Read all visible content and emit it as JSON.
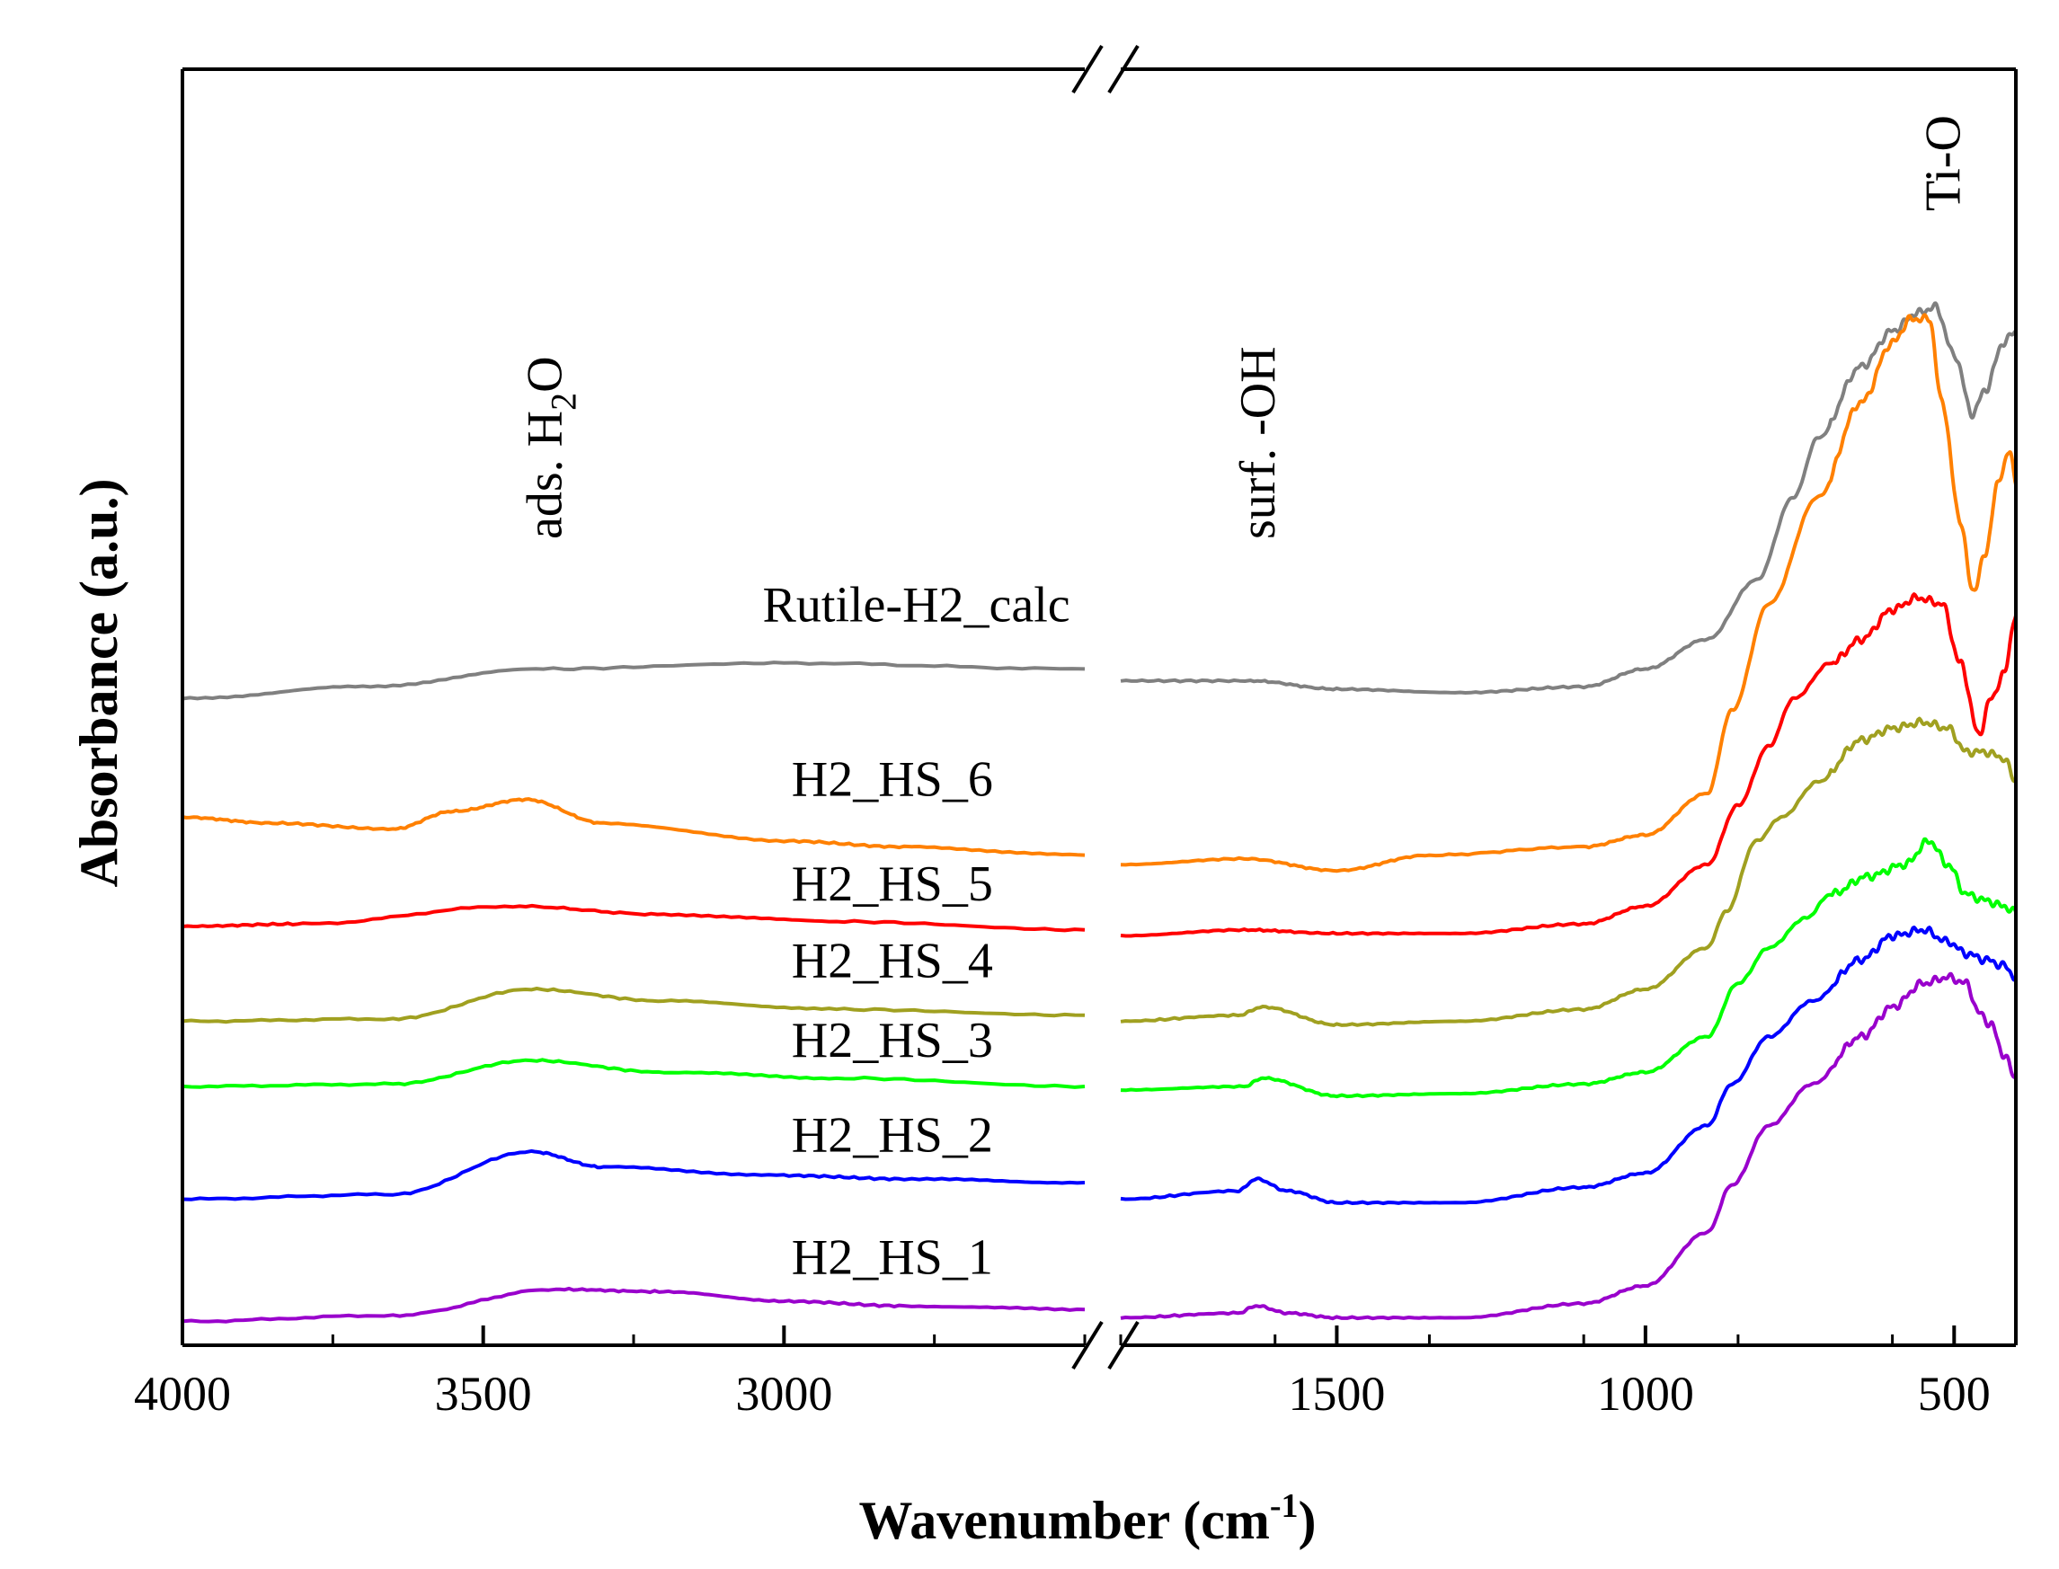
{
  "chart_data": {
    "type": "line",
    "xlabel": "Wavenumber",
    "xlabel_unit": "(cm",
    "xlabel_unit_sup": "-1",
    "xlabel_unit_close": ")",
    "ylabel": "Absorbance (a.u.)",
    "x_reversed": true,
    "axis_break": true,
    "x_segments": [
      {
        "xlim": [
          4000,
          2500
        ],
        "ticks": [
          4000,
          3500,
          3000
        ],
        "tick_labels": [
          "4000",
          "3500",
          "3000"
        ]
      },
      {
        "xlim": [
          1850,
          400
        ],
        "ticks": [
          1500,
          1000,
          500
        ],
        "tick_labels": [
          "1500",
          "1000",
          "500"
        ]
      }
    ],
    "ylim": [
      0,
      100
    ],
    "annotations": [
      {
        "text": "ads. H",
        "sub": "2",
        "tail": "O",
        "x": 3400
      },
      {
        "text": "surf. -OH",
        "x": 1630
      },
      {
        "text": "Ti-O",
        "x": 520
      }
    ],
    "series": [
      {
        "name": "Rutile-H2_calc",
        "color": "#808080",
        "label_x": 2780,
        "label_y": 59.5,
        "points": [
          [
            4000,
            53
          ],
          [
            3700,
            54
          ],
          [
            3400,
            55.5
          ],
          [
            3000,
            56
          ],
          [
            2500,
            55.5
          ],
          [
            1850,
            54.5
          ],
          [
            1640,
            54.5
          ],
          [
            1500,
            53.8
          ],
          [
            1300,
            53.5
          ],
          [
            1100,
            54
          ],
          [
            1000,
            55.5
          ],
          [
            900,
            58
          ],
          [
            820,
            63
          ],
          [
            760,
            70
          ],
          [
            720,
            75
          ],
          [
            650,
            81
          ],
          [
            600,
            84
          ],
          [
            560,
            85.5
          ],
          [
            530,
            86
          ],
          [
            500,
            82
          ],
          [
            470,
            77
          ],
          [
            450,
            79
          ],
          [
            420,
            83
          ],
          [
            400,
            84
          ]
        ]
      },
      {
        "name": "H2_HS_6",
        "color": "#FF8000",
        "label_x": 2820,
        "label_y": 44.8,
        "points": [
          [
            4000,
            43
          ],
          [
            3850,
            42.5
          ],
          [
            3650,
            42
          ],
          [
            3550,
            43.5
          ],
          [
            3430,
            44.5
          ],
          [
            3300,
            42.5
          ],
          [
            3000,
            41
          ],
          [
            2800,
            40.5
          ],
          [
            2500,
            39.8
          ],
          [
            1850,
            39
          ],
          [
            1650,
            39.5
          ],
          [
            1500,
            38.5
          ],
          [
            1350,
            39.8
          ],
          [
            1100,
            40.5
          ],
          [
            1000,
            41.5
          ],
          [
            900,
            45
          ],
          [
            860,
            52
          ],
          [
            800,
            61
          ],
          [
            720,
            70
          ],
          [
            650,
            78
          ],
          [
            600,
            83
          ],
          [
            570,
            85
          ],
          [
            540,
            85
          ],
          [
            520,
            78
          ],
          [
            490,
            68
          ],
          [
            470,
            62
          ],
          [
            450,
            65
          ],
          [
            430,
            71
          ],
          [
            410,
            74
          ],
          [
            400,
            71
          ]
        ]
      },
      {
        "name": "H2_HS_5",
        "color": "#FF0000",
        "label_x": 2820,
        "label_y": 36.0,
        "points": [
          [
            4000,
            33.8
          ],
          [
            3800,
            34
          ],
          [
            3450,
            35.5
          ],
          [
            3200,
            34.8
          ],
          [
            2900,
            34.2
          ],
          [
            2500,
            33.5
          ],
          [
            1850,
            33
          ],
          [
            1650,
            33.5
          ],
          [
            1500,
            33.2
          ],
          [
            1300,
            33.2
          ],
          [
            1100,
            34
          ],
          [
            1000,
            35.5
          ],
          [
            900,
            39
          ],
          [
            850,
            44
          ],
          [
            800,
            49
          ],
          [
            760,
            53
          ],
          [
            700,
            56
          ],
          [
            650,
            58
          ],
          [
            600,
            60.5
          ],
          [
            560,
            61.5
          ],
          [
            520,
            61
          ],
          [
            490,
            56
          ],
          [
            460,
            50
          ],
          [
            440,
            53
          ],
          [
            420,
            55
          ],
          [
            400,
            60
          ]
        ]
      },
      {
        "name": "H2_HS_4",
        "color": "#A0A020",
        "label_x": 2820,
        "label_y": 29.5,
        "points": [
          [
            4000,
            25.8
          ],
          [
            3650,
            26
          ],
          [
            3420,
            28.5
          ],
          [
            3200,
            27.5
          ],
          [
            2900,
            26.8
          ],
          [
            2500,
            26.3
          ],
          [
            1850,
            25.8
          ],
          [
            1660,
            26.3
          ],
          [
            1620,
            27
          ],
          [
            1500,
            25.5
          ],
          [
            1300,
            25.8
          ],
          [
            1100,
            26.8
          ],
          [
            1000,
            28.5
          ],
          [
            900,
            32
          ],
          [
            870,
            35
          ],
          [
            820,
            41
          ],
          [
            780,
            43
          ],
          [
            720,
            46
          ],
          [
            650,
            49.5
          ],
          [
            600,
            50.5
          ],
          [
            550,
            51
          ],
          [
            510,
            50.5
          ],
          [
            480,
            48.5
          ],
          [
            450,
            48.5
          ],
          [
            420,
            48
          ],
          [
            400,
            46
          ]
        ]
      },
      {
        "name": "H2_HS_3",
        "color": "#00FF00",
        "label_x": 2820,
        "label_y": 22.8,
        "points": [
          [
            4000,
            20.3
          ],
          [
            3650,
            20.5
          ],
          [
            3420,
            22.5
          ],
          [
            3200,
            21.5
          ],
          [
            2900,
            21
          ],
          [
            2500,
            20.3
          ],
          [
            1850,
            20
          ],
          [
            1650,
            20.3
          ],
          [
            1620,
            21
          ],
          [
            1500,
            19.5
          ],
          [
            1300,
            19.7
          ],
          [
            1100,
            20.5
          ],
          [
            1000,
            21.5
          ],
          [
            900,
            24.5
          ],
          [
            850,
            29
          ],
          [
            800,
            32
          ],
          [
            740,
            34.5
          ],
          [
            700,
            36.5
          ],
          [
            640,
            38
          ],
          [
            580,
            39
          ],
          [
            540,
            41
          ],
          [
            510,
            39
          ],
          [
            480,
            36.5
          ],
          [
            450,
            36
          ],
          [
            420,
            35.5
          ],
          [
            400,
            35
          ]
        ]
      },
      {
        "name": "H2_HS_2",
        "color": "#0000FF",
        "label_x": 2820,
        "label_y": 14.8,
        "points": [
          [
            4000,
            10.8
          ],
          [
            3650,
            11.2
          ],
          [
            3420,
            14.8
          ],
          [
            3300,
            13.5
          ],
          [
            3000,
            12.8
          ],
          [
            2800,
            12.5
          ],
          [
            2500,
            12.2
          ],
          [
            1850,
            10.8
          ],
          [
            1660,
            11.5
          ],
          [
            1630,
            12.5
          ],
          [
            1580,
            11.5
          ],
          [
            1500,
            10.5
          ],
          [
            1300,
            10.5
          ],
          [
            1100,
            11.8
          ],
          [
            1000,
            13
          ],
          [
            900,
            17
          ],
          [
            860,
            20.5
          ],
          [
            800,
            24.5
          ],
          [
            730,
            27.5
          ],
          [
            650,
            31
          ],
          [
            600,
            33
          ],
          [
            550,
            33.5
          ],
          [
            510,
            32.5
          ],
          [
            480,
            31.5
          ],
          [
            450,
            31
          ],
          [
            420,
            30.5
          ],
          [
            400,
            29.5
          ]
        ]
      },
      {
        "name": "H2_HS_1",
        "color": "#9900CC",
        "label_x": 2820,
        "label_y": 4.5,
        "points": [
          [
            4000,
            0.5
          ],
          [
            3650,
            1
          ],
          [
            3380,
            3.2
          ],
          [
            3200,
            3
          ],
          [
            3000,
            2.2
          ],
          [
            2800,
            1.8
          ],
          [
            2500,
            1.5
          ],
          [
            1850,
            0.8
          ],
          [
            1660,
            1.2
          ],
          [
            1630,
            1.8
          ],
          [
            1580,
            1.2
          ],
          [
            1500,
            0.8
          ],
          [
            1300,
            0.8
          ],
          [
            1100,
            2
          ],
          [
            1000,
            3.5
          ],
          [
            900,
            8
          ],
          [
            860,
            12
          ],
          [
            800,
            17
          ],
          [
            730,
            20.5
          ],
          [
            650,
            24.5
          ],
          [
            600,
            27
          ],
          [
            550,
            29
          ],
          [
            510,
            29.5
          ],
          [
            480,
            29
          ],
          [
            460,
            26.5
          ],
          [
            440,
            25.5
          ],
          [
            420,
            23
          ],
          [
            400,
            21
          ]
        ]
      }
    ]
  }
}
